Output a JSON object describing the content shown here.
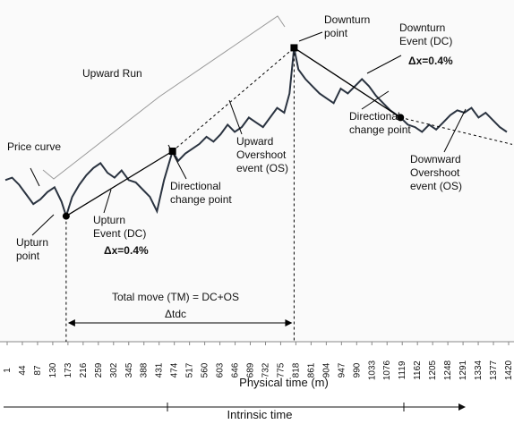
{
  "chart_data": {
    "type": "line",
    "xlabel": "Physical time (m)",
    "intrinsic_label": "Intrinsic time",
    "x_ticks": [
      "1",
      "44",
      "87",
      "130",
      "173",
      "216",
      "259",
      "302",
      "345",
      "388",
      "431",
      "474",
      "517",
      "560",
      "603",
      "646",
      "689",
      "732",
      "775",
      "818",
      "861",
      "904",
      "947",
      "990",
      "1033",
      "1076",
      "1119",
      "1162",
      "1205",
      "1248",
      "1291",
      "1334",
      "1377",
      "1420"
    ],
    "series": [
      {
        "x": [
          1,
          20,
          40,
          60,
          80,
          100,
          120,
          140,
          160,
          173,
          190,
          210,
          230,
          250,
          270,
          290,
          310,
          330,
          350,
          370,
          390,
          410,
          430,
          450,
          474,
          490,
          510,
          530,
          550,
          570,
          590,
          610,
          630,
          650,
          670,
          690,
          710,
          730,
          750,
          770,
          790,
          805,
          818,
          830,
          850,
          870,
          890,
          910,
          930,
          950,
          970,
          990,
          1010,
          1030,
          1050,
          1070,
          1090,
          1119,
          1140,
          1160,
          1180,
          1200,
          1220,
          1240,
          1260,
          1280,
          1300,
          1320,
          1340,
          1360,
          1380,
          1400,
          1420
        ],
        "y": [
          40,
          42,
          36,
          28,
          20,
          24,
          30,
          34,
          22,
          10,
          26,
          36,
          44,
          50,
          54,
          46,
          42,
          48,
          40,
          38,
          32,
          26,
          14,
          40,
          64,
          56,
          62,
          66,
          70,
          76,
          72,
          78,
          86,
          80,
          84,
          92,
          88,
          84,
          92,
          100,
          96,
          112,
          150,
          132,
          124,
          118,
          112,
          108,
          104,
          116,
          112,
          118,
          124,
          118,
          110,
          104,
          98,
          92,
          86,
          84,
          80,
          86,
          82,
          88,
          94,
          98,
          96,
          100,
          92,
          96,
          90,
          84,
          80
        ]
      }
    ],
    "annotations": {
      "price_curve": "Price curve",
      "upward_run": "Upward Run",
      "upturn_point": [
        "Upturn",
        "point"
      ],
      "upturn_event": [
        "Upturn",
        "Event (DC)"
      ],
      "upturn_dx": "Δx=0.4%",
      "dc_point_up": [
        "Directional",
        "change point"
      ],
      "upward_os": [
        "Upward",
        "Overshoot",
        "event (OS)"
      ],
      "downturn_point": [
        "Downturn",
        "point"
      ],
      "downturn_event": [
        "Downturn",
        "Event (DC)"
      ],
      "downturn_dx": "Δx=0.4%",
      "dc_point_down": [
        "Directional",
        "change point"
      ],
      "downward_os": [
        "Downward",
        "Overshoot",
        "event (OS)"
      ],
      "total_move": "Total move (TM) = DC+OS",
      "delta_t": "Δtdc"
    },
    "markers": {
      "upturn_point_x": 173,
      "upturn_dc_x": 474,
      "downturn_point_x": 818,
      "downturn_dc_x": 1119
    },
    "grid": false,
    "legend": "none"
  }
}
